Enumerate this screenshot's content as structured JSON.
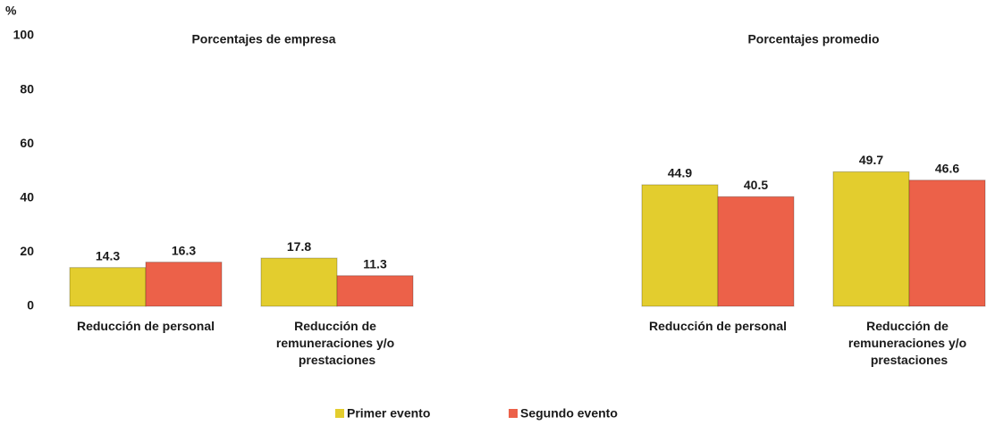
{
  "chart_data": [
    {
      "type": "bar",
      "title": "Porcentajes de empresa",
      "ylabel": "%",
      "ylim": [
        0,
        100
      ],
      "yticks": [
        0,
        20,
        40,
        60,
        80,
        100
      ],
      "categories": [
        "Reducción de personal",
        "Reducción de remuneraciones y/o prestaciones"
      ],
      "series": [
        {
          "name": "Primer evento",
          "color": "#e3cd2e",
          "values": [
            14.3,
            17.8
          ]
        },
        {
          "name": "Segundo evento",
          "color": "#ec6149",
          "values": [
            16.3,
            11.3
          ]
        }
      ]
    },
    {
      "type": "bar",
      "title": "Porcentajes promedio",
      "ylim": [
        0,
        100
      ],
      "categories": [
        "Reducción de personal",
        "Reducción de remuneraciones y/o prestaciones"
      ],
      "series": [
        {
          "color": "#e3cd2e",
          "values": [
            44.9,
            49.7
          ]
        },
        {
          "color": "#ec6149",
          "values": [
            40.5,
            46.6
          ]
        }
      ]
    }
  ]
}
